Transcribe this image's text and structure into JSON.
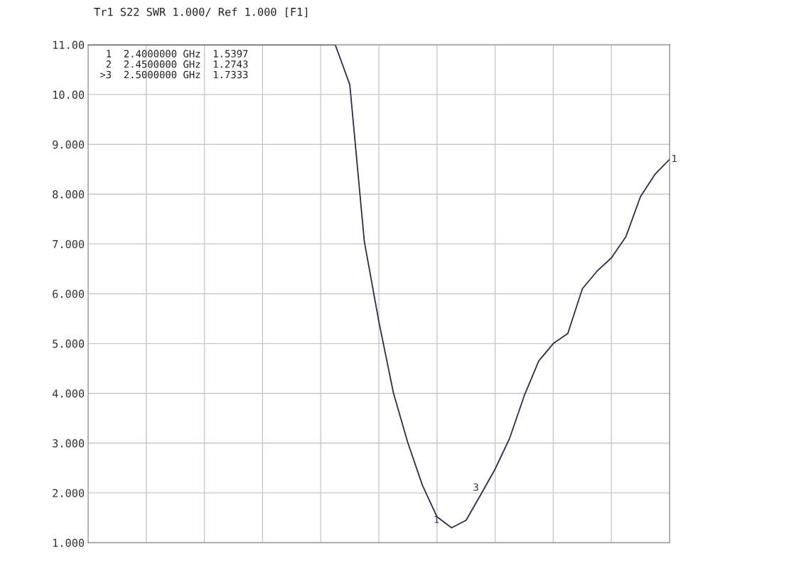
{
  "chart_data": {
    "type": "line",
    "title": "Tr1 S22 SWR 1.000/ Ref 1.000 [F1]",
    "categories": [
      null,
      null,
      null,
      null,
      null,
      null,
      null,
      null,
      null,
      null,
      null,
      null,
      null,
      null,
      null,
      null,
      null,
      null,
      null,
      null,
      null,
      null,
      null,
      null,
      null,
      null,
      null,
      null,
      null,
      null,
      null,
      null,
      null,
      null,
      null,
      null,
      null,
      null,
      null,
      null,
      null
    ],
    "series": [
      {
        "color": "#2b2f4a",
        "values": [
          11,
          11,
          11,
          11,
          11,
          11,
          11,
          11,
          11,
          11,
          11,
          11,
          11,
          11,
          11,
          11,
          11,
          11,
          10.2,
          7.05,
          5.44,
          4.01,
          3.0,
          2.15,
          1.52,
          1.3,
          1.45,
          1.96,
          2.48,
          3.1,
          3.95,
          4.65,
          5.0,
          5.2,
          6.1,
          6.45,
          6.72,
          7.15,
          7.95,
          8.4,
          8.7
        ]
      }
    ],
    "ylim": [
      1,
      11
    ],
    "yticks": [
      {
        "value": 1,
        "label": "1.000"
      },
      {
        "value": 2,
        "label": "2.000"
      },
      {
        "value": 3,
        "label": "3.000"
      },
      {
        "value": 4,
        "label": "4.000"
      },
      {
        "value": 5,
        "label": "5.000"
      },
      {
        "value": 6,
        "label": "6.000"
      },
      {
        "value": 7,
        "label": "7.000"
      },
      {
        "value": 8,
        "label": "8.000"
      },
      {
        "value": 9,
        "label": "9.000"
      },
      {
        "value": 10,
        "label": "10.00"
      },
      {
        "value": 11,
        "label": "11.00"
      }
    ],
    "grid": true,
    "annotations": [
      " 1  2.4000000 GHz  1.5397",
      " 2  2.4500000 GHz  1.2743",
      ">3  2.5000000 GHz  1.7333",
      "1",
      "3",
      "1"
    ]
  }
}
